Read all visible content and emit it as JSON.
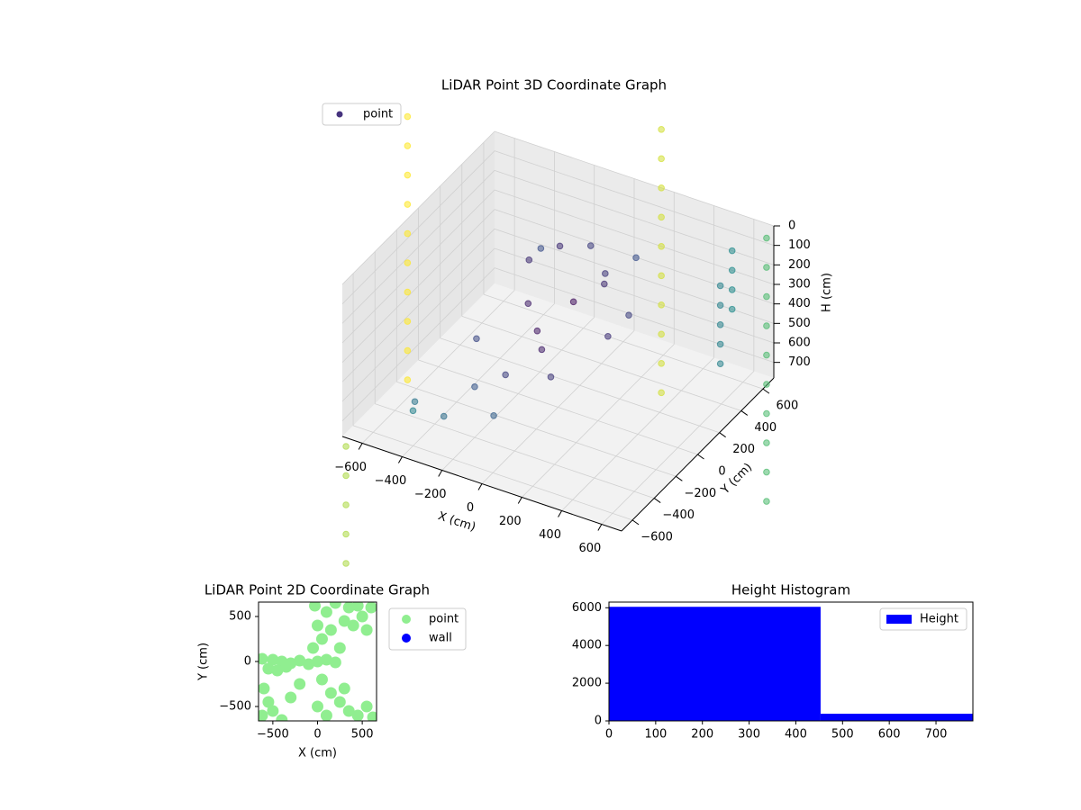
{
  "chart_data": [
    {
      "type": "scatter3d",
      "title": "LiDAR Point 3D Coordinate Graph",
      "xlabel": "X (cm)",
      "ylabel": "Y (cm)",
      "zlabel": "H (cm)",
      "xlim": [
        -700,
        700
      ],
      "ylim": [
        -700,
        700
      ],
      "zlim": [
        0,
        780
      ],
      "zinverted": true,
      "xticks": [
        {
          "value": -600,
          "label": "−600"
        },
        {
          "value": -400,
          "label": "−400"
        },
        {
          "value": -200,
          "label": "−200"
        },
        0,
        200,
        400,
        600
      ],
      "yticks": [
        {
          "value": -600,
          "label": "−600"
        },
        {
          "value": -400,
          "label": "−400"
        },
        {
          "value": -200,
          "label": "−200"
        },
        0,
        200,
        400,
        600
      ],
      "zticks": [
        0,
        100,
        200,
        300,
        400,
        500,
        600,
        700
      ],
      "colormap": "viridis",
      "legend": "upper left",
      "series": [
        {
          "name": "point",
          "color": "#46337e",
          "x": [
            -200,
            -100,
            0,
            100,
            -150,
            -50,
            50,
            150,
            -250,
            200,
            -300,
            -100,
            0,
            250,
            300,
            -200,
            -50,
            100,
            600,
            600,
            600,
            600,
            650,
            650,
            650,
            650,
            650,
            -400,
            -300,
            -500,
            -1300,
            -1300,
            -1300,
            -1300,
            -1300,
            -1300,
            -1300,
            -1300,
            -1300,
            -1300,
            -300,
            -300,
            -300,
            -300,
            -300,
            -300,
            -300,
            -300,
            -300,
            -300,
            500,
            500,
            500,
            500,
            500,
            500,
            500,
            500,
            500,
            500,
            -300,
            -300,
            -300,
            -300,
            -300,
            -300,
            -300,
            -300,
            -300,
            -300
          ],
          "y": [
            100,
            200,
            300,
            250,
            0,
            -100,
            50,
            150,
            300,
            350,
            -200,
            -300,
            -150,
            0,
            100,
            -400,
            -500,
            -250,
            500,
            500,
            500,
            500,
            300,
            300,
            300,
            300,
            300,
            -600,
            -500,
            -400,
            1000,
            1000,
            1000,
            1000,
            1000,
            1000,
            1000,
            1000,
            1000,
            1000,
            1500,
            1500,
            1500,
            1500,
            1500,
            1500,
            1500,
            1500,
            1500,
            1500,
            1000,
            1000,
            1000,
            1000,
            1000,
            1000,
            1000,
            1000,
            1000,
            1000,
            -1400,
            -1400,
            -1400,
            -1400,
            -1400,
            -1400,
            -1400,
            -1400,
            -1400,
            -1400
          ],
          "z": [
            150,
            100,
            120,
            200,
            300,
            350,
            250,
            180,
            220,
            140,
            420,
            480,
            400,
            330,
            260,
            520,
            560,
            450,
            50,
            150,
            250,
            350,
            100,
            200,
            300,
            400,
            500,
            600,
            650,
            700,
            300,
            450,
            600,
            750,
            900,
            1050,
            1200,
            1350,
            1500,
            1650,
            300,
            450,
            600,
            750,
            900,
            1050,
            1200,
            1350,
            1500,
            1650,
            300,
            450,
            600,
            750,
            900,
            1050,
            1200,
            1350,
            1500,
            1650,
            300,
            450,
            600,
            750,
            900,
            1050,
            1200,
            1350,
            1500,
            1650
          ]
        }
      ]
    },
    {
      "type": "scatter",
      "title": "LiDAR Point 2D Coordinate Graph",
      "xlabel": "X (cm)",
      "ylabel": "Y (cm)",
      "xlim": [
        -660,
        660
      ],
      "ylim": [
        -660,
        660
      ],
      "xticks": [
        {
          "value": -500,
          "label": "−500"
        },
        0,
        500
      ],
      "yticks": [
        {
          "value": -500,
          "label": "−500"
        },
        0,
        500
      ],
      "legend": "outside right",
      "series": [
        {
          "name": "point",
          "color": "#90ee90",
          "x": [
            -620,
            -500,
            -400,
            -300,
            -200,
            -100,
            0,
            100,
            200,
            -550,
            -450,
            -350,
            -50,
            50,
            0,
            100,
            200,
            -30,
            150,
            250,
            300,
            350,
            400,
            500,
            600,
            550,
            450,
            50,
            150,
            250,
            350,
            450,
            550,
            620,
            300,
            100,
            0,
            -600,
            -550,
            -620,
            -500,
            -400,
            -300,
            -200
          ],
          "y": [
            30,
            20,
            0,
            -20,
            10,
            -30,
            0,
            20,
            -10,
            -80,
            -100,
            -60,
            150,
            250,
            400,
            550,
            650,
            620,
            350,
            150,
            450,
            600,
            400,
            500,
            600,
            350,
            620,
            -200,
            -350,
            -450,
            -550,
            -600,
            -500,
            -620,
            -300,
            -600,
            -500,
            -300,
            -450,
            -600,
            -550,
            -650,
            -400,
            -250
          ]
        },
        {
          "name": "wall",
          "color": "#0000ff",
          "x": [],
          "y": []
        }
      ]
    },
    {
      "type": "histogram",
      "title": "Height Histogram",
      "xlim": [
        0,
        779
      ],
      "ylim": [
        0,
        6300
      ],
      "xticks": [
        0,
        100,
        200,
        300,
        400,
        500,
        600,
        700
      ],
      "yticks": [
        0,
        2000,
        4000,
        6000
      ],
      "legend": "upper right",
      "series": [
        {
          "name": "Height",
          "color": "#0000ff",
          "bins": [
            0,
            453,
            779
          ],
          "values": [
            6050,
            380
          ]
        }
      ]
    }
  ]
}
